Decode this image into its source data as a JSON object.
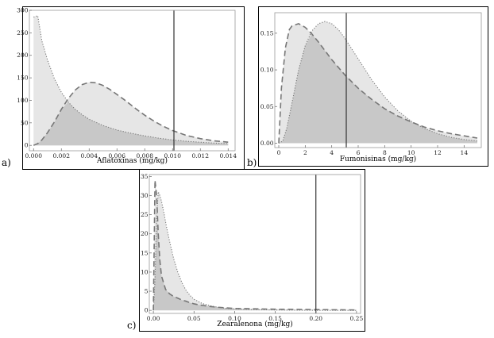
{
  "panels": [
    {
      "label": "a)",
      "chart_data": {
        "type": "area",
        "xlabel": "Aflatoxinas (mg/kg)",
        "ylabel": "",
        "xlim": [
          -0.0003,
          0.0145
        ],
        "ylim": [
          -12,
          300
        ],
        "x_ticks": [
          0.0,
          0.002,
          0.004,
          0.006,
          0.008,
          0.01,
          0.012,
          0.014
        ],
        "x_tick_labels": [
          "0.000",
          "0.002",
          "0.004",
          "0.006",
          "0.008",
          "0.010",
          "0.012",
          "0.014"
        ],
        "y_ticks": [
          0,
          50,
          100,
          150,
          200,
          250,
          300
        ],
        "y_tick_labels": [
          "0",
          "50",
          "100",
          "150",
          "200",
          "250",
          "300"
        ],
        "vline": 0.0101,
        "series": [
          {
            "style": "dashed",
            "x": [
              0.0,
              0.0003,
              0.0006,
              0.001,
              0.0015,
              0.002,
              0.0025,
              0.003,
              0.0035,
              0.004,
              0.0045,
              0.005,
              0.0055,
              0.006,
              0.0065,
              0.007,
              0.0075,
              0.008,
              0.0085,
              0.009,
              0.0095,
              0.01,
              0.011,
              0.012,
              0.013,
              0.014
            ],
            "y": [
              0,
              4,
              12,
              28,
              52,
              80,
              104,
              123,
              135,
              140,
              139,
              133,
              124,
              113,
              102,
              90,
              78,
              67,
              57,
              48,
              40,
              33,
              22,
              15,
              10,
              7
            ]
          },
          {
            "style": "dotted",
            "x": [
              0.0,
              0.0003,
              0.0006,
              0.001,
              0.0015,
              0.002,
              0.0025,
              0.003,
              0.0035,
              0.004,
              0.005,
              0.006,
              0.007,
              0.008,
              0.009,
              0.01,
              0.011,
              0.012,
              0.013,
              0.014
            ],
            "y": [
              285,
              288,
              232,
              190,
              148,
              118,
              96,
              80,
              68,
              58,
              44,
              34,
              27,
              21,
              16,
              12,
              9,
              7,
              5,
              4
            ]
          }
        ]
      }
    },
    {
      "label": "b)",
      "chart_data": {
        "type": "area",
        "xlabel": "Fumonisinas (mg/kg)",
        "ylabel": "",
        "xlim": [
          -0.3,
          15.3
        ],
        "ylim": [
          -0.006,
          0.178
        ],
        "x_ticks": [
          0,
          2,
          4,
          6,
          8,
          10,
          12,
          14
        ],
        "x_tick_labels": [
          "0",
          "2",
          "4",
          "6",
          "8",
          "10",
          "12",
          "14"
        ],
        "y_ticks": [
          0,
          0.05,
          0.1,
          0.15
        ],
        "y_tick_labels": [
          "0.00",
          "0.05",
          "0.10",
          "0.15"
        ],
        "vline": 5.1,
        "series": [
          {
            "style": "dashed",
            "x": [
              0.0,
              0.2,
              0.5,
              0.8,
              1.0,
              1.5,
              2.0,
              2.5,
              3.0,
              4.0,
              5.0,
              6.0,
              7.0,
              8.0,
              9.0,
              10.0,
              11.0,
              12.0,
              13.0,
              14.0,
              15.0
            ],
            "y": [
              0,
              0.075,
              0.13,
              0.155,
              0.16,
              0.163,
              0.158,
              0.149,
              0.138,
              0.114,
              0.093,
              0.075,
              0.06,
              0.047,
              0.037,
              0.029,
              0.022,
              0.017,
              0.013,
              0.01,
              0.007
            ]
          },
          {
            "style": "dotted",
            "x": [
              0.0,
              0.3,
              0.6,
              1.0,
              1.5,
              2.0,
              2.5,
              3.0,
              3.5,
              4.0,
              4.5,
              5.0,
              6.0,
              7.0,
              8.0,
              9.0,
              10.0,
              11.0,
              12.0,
              13.0,
              14.0,
              15.0
            ],
            "y": [
              0,
              0.003,
              0.02,
              0.055,
              0.1,
              0.133,
              0.153,
              0.163,
              0.166,
              0.163,
              0.155,
              0.143,
              0.115,
              0.087,
              0.063,
              0.044,
              0.03,
              0.02,
              0.013,
              0.008,
              0.005,
              0.003
            ]
          }
        ]
      }
    },
    {
      "label": "c)",
      "chart_data": {
        "type": "area",
        "xlabel": "Zearalenona (mg/kg)",
        "ylabel": "",
        "xlim": [
          -0.005,
          0.255
        ],
        "ylim": [
          -0.8,
          35.5
        ],
        "x_ticks": [
          0.0,
          0.05,
          0.1,
          0.15,
          0.2,
          0.25
        ],
        "x_tick_labels": [
          "0.00",
          "0.05",
          "0.10",
          "0.15",
          "0.20",
          "0.25"
        ],
        "y_ticks": [
          0,
          5,
          10,
          15,
          20,
          25,
          30,
          35
        ],
        "y_tick_labels": [
          "0",
          "5",
          "10",
          "15",
          "20",
          "25",
          "30",
          "35"
        ],
        "vline": 0.2,
        "series": [
          {
            "style": "dotted",
            "x": [
              0.0,
              0.002,
              0.004,
              0.006,
              0.008,
              0.01,
              0.013,
              0.016,
              0.02,
              0.025,
              0.03,
              0.035,
              0.04,
              0.045,
              0.05,
              0.06,
              0.07,
              0.08,
              0.09,
              0.1,
              0.12,
              0.15,
              0.2,
              0.25
            ],
            "y": [
              0,
              8,
              24,
              31,
              30,
              28.5,
              25.5,
              22,
              18,
              13.5,
              10,
              7.3,
              5.3,
              3.9,
              2.9,
              1.8,
              1.2,
              0.8,
              0.5,
              0.4,
              0.2,
              0.1,
              0,
              0
            ]
          },
          {
            "style": "dashed",
            "x": [
              0.0,
              0.002,
              0.004,
              0.006,
              0.008,
              0.01,
              0.015,
              0.02,
              0.025,
              0.03,
              0.035,
              0.04,
              0.045,
              0.05,
              0.06,
              0.07,
              0.08,
              0.1,
              0.15,
              0.2,
              0.25
            ],
            "y": [
              0,
              34,
              30,
              20,
              13,
              9,
              5.5,
              4.3,
              3.6,
              3.2,
              2.7,
              2.4,
              2.0,
              1.7,
              1.3,
              1.0,
              0.8,
              0.5,
              0.3,
              0.2,
              0.1
            ]
          }
        ]
      }
    }
  ],
  "colors": {
    "frame": "#000000",
    "fill_light": "#e6e6e6",
    "fill_dark": "#c8c8c8",
    "curve": "#777777",
    "vline": "#333333",
    "axis": "#999999"
  }
}
